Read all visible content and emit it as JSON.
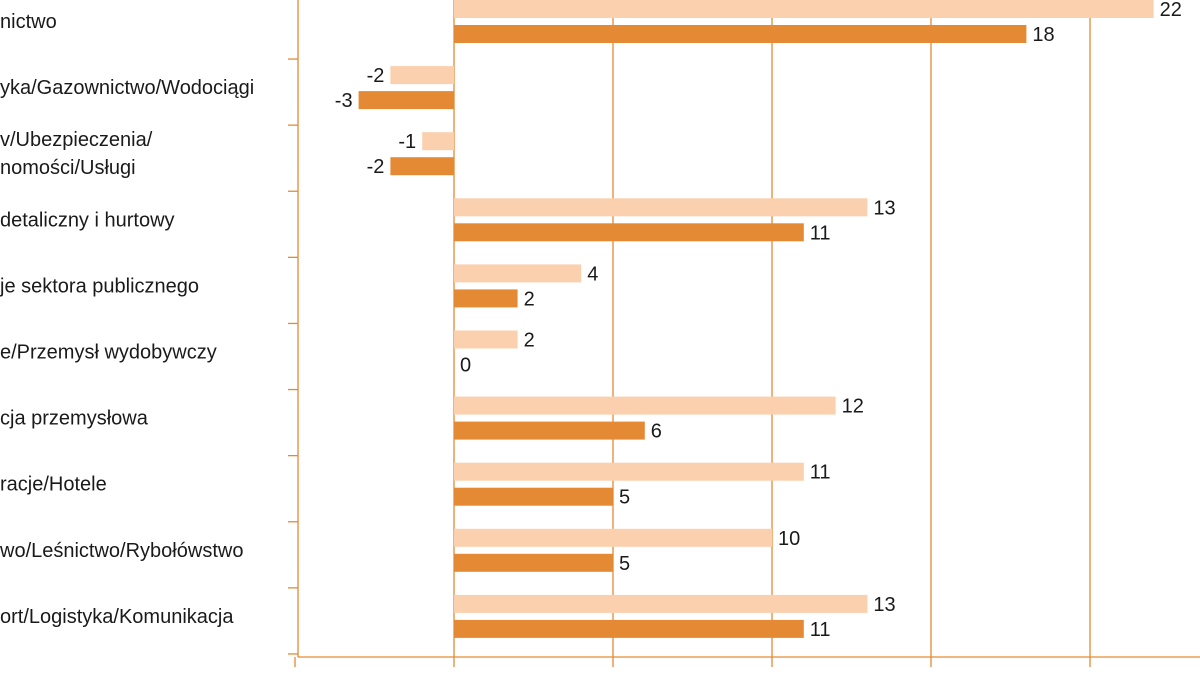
{
  "chart_data": {
    "type": "bar",
    "orientation": "horizontal",
    "categories": [
      [
        "nictwo"
      ],
      [
        "yka/Gazownictwo/Wodociągi"
      ],
      [
        "v/Ubezpieczenia/",
        "nomości/Usługi"
      ],
      [
        "detaliczny i hurtowy"
      ],
      [
        "je sektora publicznego"
      ],
      [
        "e/Przemysł wydobywczy"
      ],
      [
        "cja przemysłowa"
      ],
      [
        "racje/Hotele"
      ],
      [
        "wo/Leśnictwo/Rybołówstwo"
      ],
      [
        "ort/Logistyka/Komunikacja"
      ]
    ],
    "series": [
      {
        "values": [
          22,
          -2,
          -1,
          13,
          4,
          2,
          12,
          11,
          10,
          13
        ]
      },
      {
        "values": [
          18,
          -3,
          -2,
          11,
          2,
          0,
          6,
          5,
          5,
          11
        ]
      }
    ],
    "colors": {
      "series_light": "#fbd0ae",
      "series_dark": "#e58a34",
      "axis": "#e58a34",
      "grid": "#e58a34",
      "text": "#1a1a1a"
    },
    "xlim": [
      -5,
      25
    ],
    "gridlines": [
      0,
      5,
      10,
      15,
      20
    ],
    "grid": true,
    "legend": "none"
  }
}
